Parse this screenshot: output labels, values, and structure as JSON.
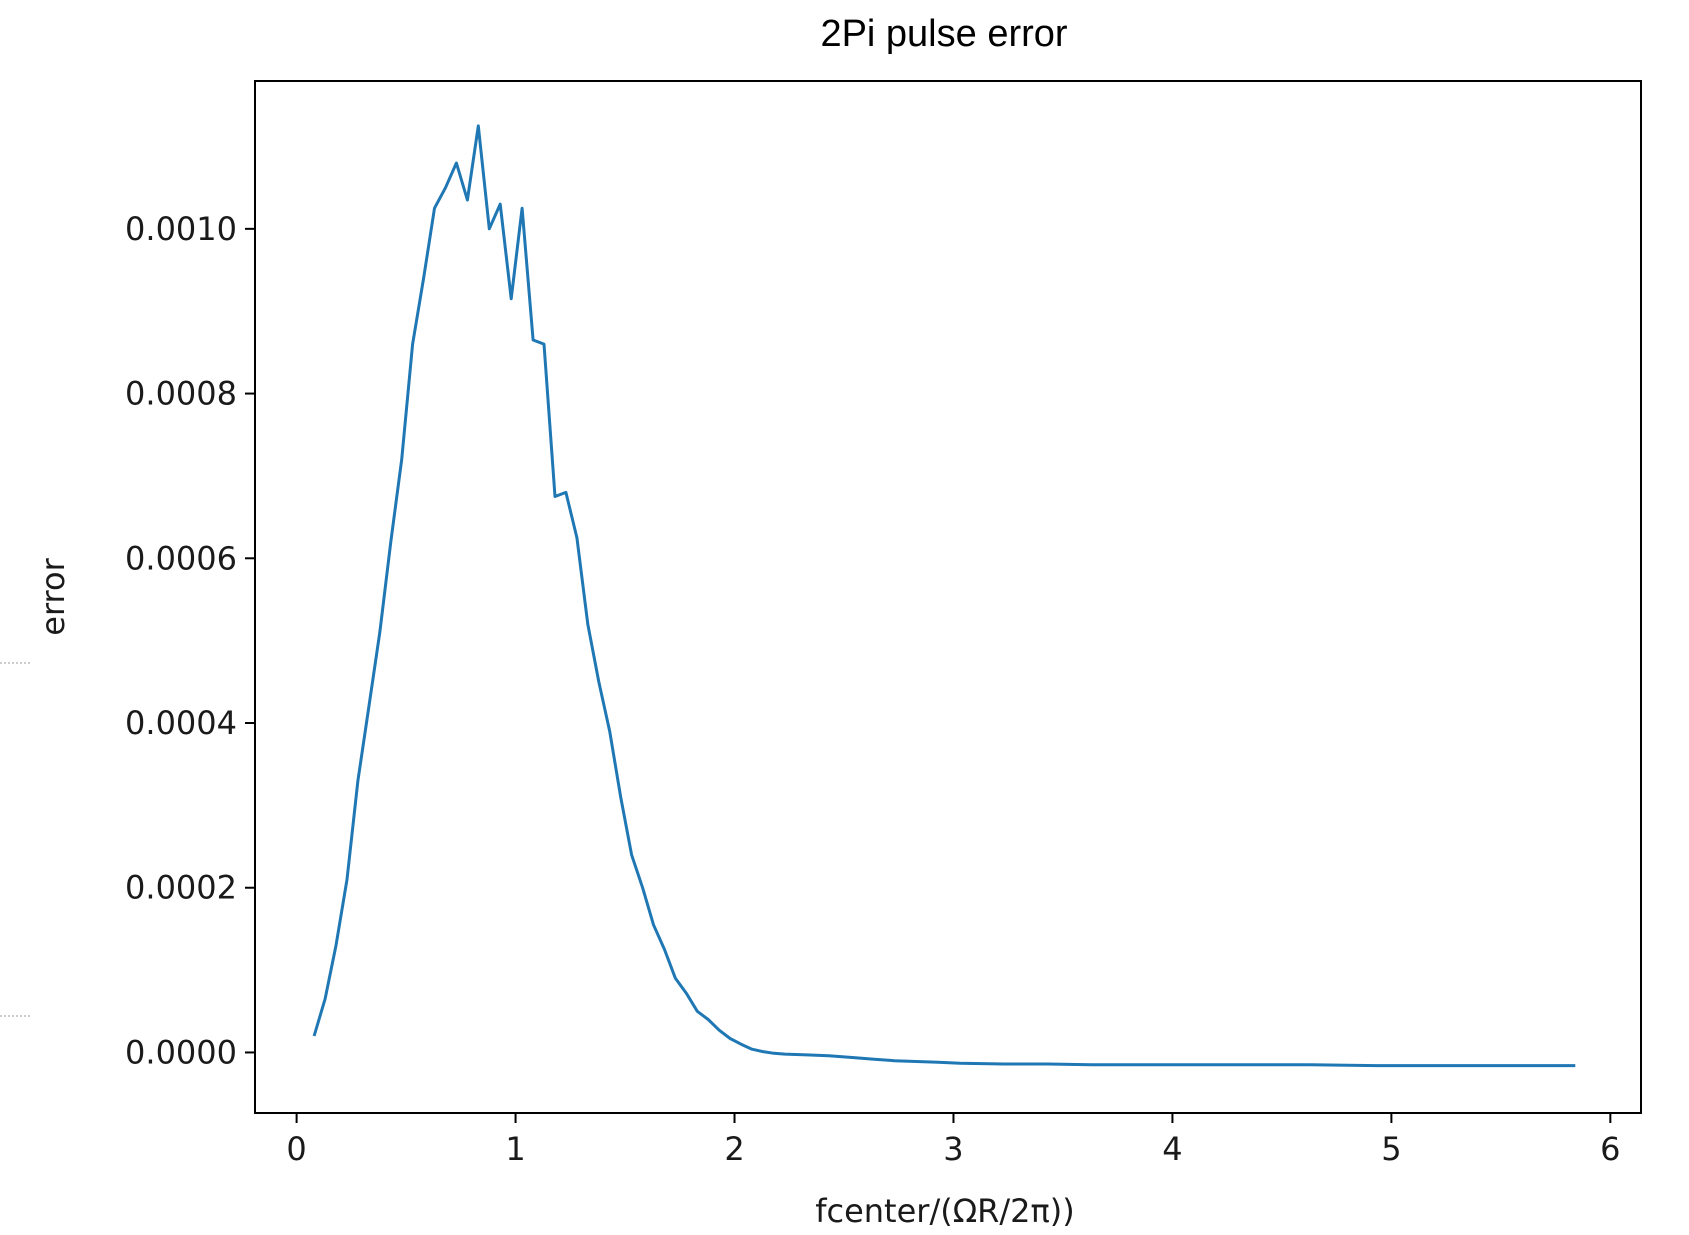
{
  "chart_data": {
    "type": "line",
    "title": "2Pi pulse error",
    "xlabel": "fcenter/(ΩR/2π))",
    "ylabel": "error",
    "xlim": [
      -0.19,
      6.14
    ],
    "ylim": [
      -7.35e-05,
      0.0011795
    ],
    "xticks": [
      0,
      1,
      2,
      3,
      4,
      5,
      6
    ],
    "xtick_labels": [
      "0",
      "1",
      "2",
      "3",
      "4",
      "5",
      "6"
    ],
    "yticks": [
      0.0,
      0.0002,
      0.0004,
      0.0006,
      0.0008,
      0.001
    ],
    "ytick_labels": [
      "0.0000",
      "0.0002",
      "0.0004",
      "0.0006",
      "0.0008",
      "0.0010"
    ],
    "grid": false,
    "series": [
      {
        "color": "#1f77b4",
        "x": [
          0.08,
          0.13,
          0.18,
          0.23,
          0.28,
          0.33,
          0.38,
          0.43,
          0.48,
          0.53,
          0.58,
          0.63,
          0.68,
          0.73,
          0.78,
          0.83,
          0.88,
          0.93,
          0.98,
          1.03,
          1.08,
          1.13,
          1.18,
          1.23,
          1.28,
          1.33,
          1.38,
          1.43,
          1.48,
          1.53,
          1.58,
          1.63,
          1.68,
          1.73,
          1.78,
          1.83,
          1.88,
          1.93,
          1.98,
          2.03,
          2.08,
          2.13,
          2.18,
          2.23,
          2.33,
          2.43,
          2.53,
          2.63,
          2.73,
          2.83,
          2.93,
          3.03,
          3.23,
          3.43,
          3.63,
          3.83,
          4.03,
          4.33,
          4.63,
          4.93,
          5.23,
          5.53,
          5.84
        ],
        "y": [
          2e-05,
          6.5e-05,
          0.00013,
          0.00021,
          0.00033,
          0.00042,
          0.00051,
          0.00062,
          0.00072,
          0.00086,
          0.00094,
          0.001025,
          0.00105,
          0.00108,
          0.001035,
          0.001125,
          0.001,
          0.00103,
          0.000915,
          0.001025,
          0.000865,
          0.00086,
          0.000675,
          0.00068,
          0.000625,
          0.00052,
          0.00045,
          0.00039,
          0.00031,
          0.00024,
          0.0002,
          0.000155,
          0.000125,
          9e-05,
          7.2e-05,
          5e-05,
          4e-05,
          2.7e-05,
          1.7e-05,
          1e-05,
          4e-06,
          1e-06,
          -1e-06,
          -2e-06,
          -3e-06,
          -4e-06,
          -6e-06,
          -8e-06,
          -1e-05,
          -1.1e-05,
          -1.2e-05,
          -1.3e-05,
          -1.4e-05,
          -1.4e-05,
          -1.5e-05,
          -1.5e-05,
          -1.5e-05,
          -1.5e-05,
          -1.5e-05,
          -1.6e-05,
          -1.6e-05,
          -1.6e-05,
          -1.6e-05
        ]
      }
    ]
  }
}
